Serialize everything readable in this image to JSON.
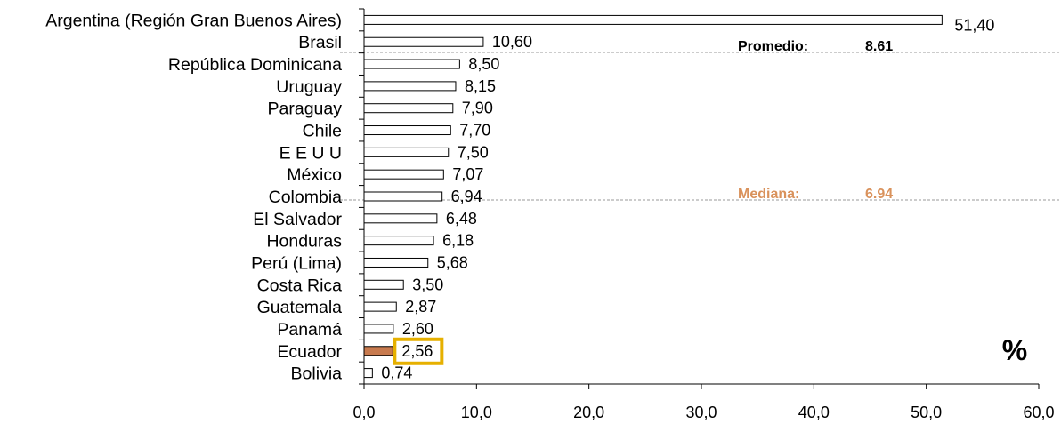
{
  "chart_data": {
    "type": "bar",
    "orientation": "horizontal",
    "categories": [
      "Argentina (Región Gran Buenos Aires)",
      "Brasil",
      "República Dominicana",
      "Uruguay",
      "Paraguay",
      "Chile",
      "E E U U",
      "México",
      "Colombia",
      "El Salvador",
      "Honduras",
      "Perú (Lima)",
      "Costa Rica",
      "Guatemala",
      "Panamá",
      "Ecuador",
      "Bolivia"
    ],
    "values": [
      51.4,
      10.6,
      8.5,
      8.15,
      7.9,
      7.7,
      7.5,
      7.07,
      6.94,
      6.48,
      6.18,
      5.68,
      3.5,
      2.87,
      2.6,
      2.56,
      0.74
    ],
    "value_labels": [
      "51,40",
      "10,60",
      "8,50",
      "8,15",
      "7,90",
      "7,70",
      "7,50",
      "7,07",
      "6,94",
      "6,48",
      "6,18",
      "5,68",
      "3,50",
      "2,87",
      "2,60",
      "2,56",
      "0,74"
    ],
    "xlim": [
      0,
      60
    ],
    "xticks": [
      0,
      10,
      20,
      30,
      40,
      50,
      60
    ],
    "xtick_labels": [
      "0,0",
      "10,0",
      "20,0",
      "30,0",
      "40,0",
      "50,0",
      "60,0"
    ],
    "highlight_category": "Ecuador",
    "unit_label": "%",
    "reference_lines": [
      {
        "label": "Promedio:",
        "value_text": "8.61",
        "value": 8.61,
        "color": "#000000"
      },
      {
        "label": "Mediana:",
        "value_text": "6.94",
        "value": 6.94,
        "color": "#d9925c"
      }
    ],
    "colors": {
      "bar_fill": "#ffffff",
      "bar_stroke": "#000000",
      "highlight_fill": "#c87a4e",
      "highlight_box": "#e6b000",
      "ref_line": "#999999"
    },
    "grid": false,
    "legend": "none"
  }
}
